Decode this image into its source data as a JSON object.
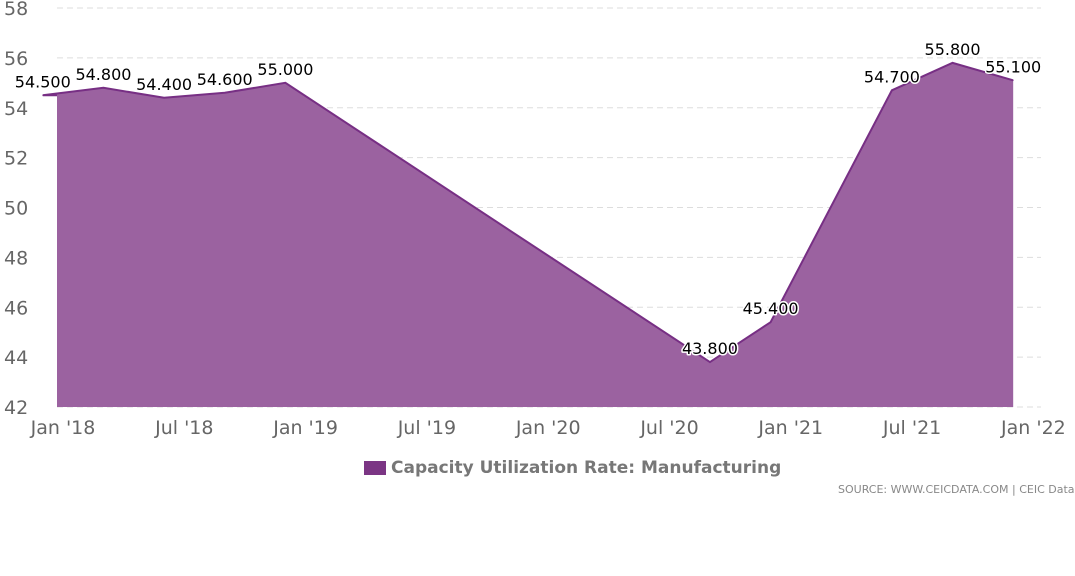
{
  "colors": {
    "fill": "#9b62a0",
    "line": "#772f84",
    "grid": "#dddddd",
    "legend_swatch": "#7b3584"
  },
  "legend": {
    "label": "Capacity Utilization Rate: Manufacturing"
  },
  "source": {
    "text": "SOURCE: WWW.CEICDATA.COM | CEIC Data"
  },
  "chart_data": {
    "type": "area",
    "title": "",
    "xlabel": "",
    "ylabel": "",
    "ylim": [
      42,
      58
    ],
    "yticks": [
      42,
      44,
      46,
      48,
      50,
      52,
      54,
      56,
      58
    ],
    "xticks": [
      "Jan '18",
      "Jul '18",
      "Jan '19",
      "Jul '19",
      "Jan '20",
      "Jul '20",
      "Jan '21",
      "Jul '21",
      "Jan '22"
    ],
    "grid": true,
    "legend_position": "bottom-center",
    "series": [
      {
        "name": "Capacity Utilization Rate: Manufacturing",
        "points": [
          {
            "x": "2017-12",
            "y": 54.5,
            "label": "54.500"
          },
          {
            "x": "2018-03",
            "y": 54.8,
            "label": "54.800"
          },
          {
            "x": "2018-06",
            "y": 54.4,
            "label": "54.400"
          },
          {
            "x": "2018-09",
            "y": 54.6,
            "label": "54.600"
          },
          {
            "x": "2018-12",
            "y": 55.0,
            "label": "55.000"
          },
          {
            "x": "2020-09",
            "y": 43.8,
            "label": "43.800"
          },
          {
            "x": "2020-12",
            "y": 45.4,
            "label": "45.400"
          },
          {
            "x": "2021-06",
            "y": 54.7,
            "label": "54.700"
          },
          {
            "x": "2021-09",
            "y": 55.8,
            "label": "55.800"
          },
          {
            "x": "2021-12",
            "y": 55.1,
            "label": "55.100"
          }
        ]
      }
    ]
  }
}
